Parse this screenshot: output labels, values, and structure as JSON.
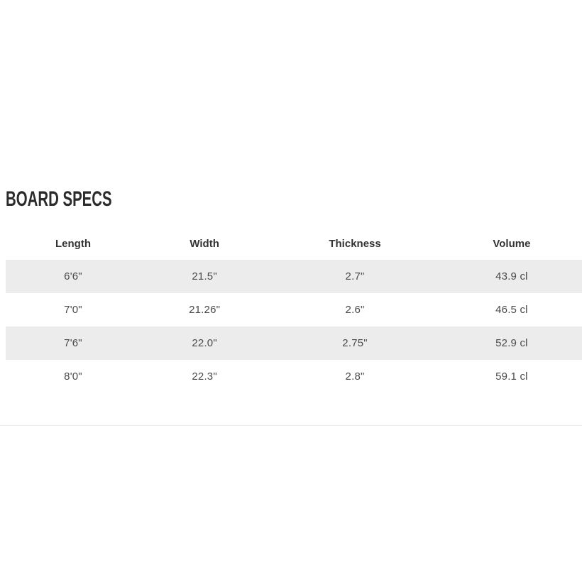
{
  "section": {
    "title": "BOARD SPECS"
  },
  "table": {
    "columns": [
      "Length",
      "Width",
      "Thickness",
      "Volume"
    ],
    "rows": [
      [
        "6'6\"",
        "21.5\"",
        "2.7\"",
        "43.9 cl"
      ],
      [
        "7'0\"",
        "21.26\"",
        "2.6\"",
        "46.5 cl"
      ],
      [
        "7'6\"",
        "22.0\"",
        "2.75\"",
        "52.9 cl"
      ],
      [
        "8'0\"",
        "22.3\"",
        "2.8\"",
        "59.1 cl"
      ]
    ]
  },
  "colors": {
    "page_background": "#ffffff",
    "title_text": "#2b2b2b",
    "header_text": "#333333",
    "cell_text": "#4a4a4a",
    "row_stripe": "#ececec",
    "divider": "#ededed"
  }
}
